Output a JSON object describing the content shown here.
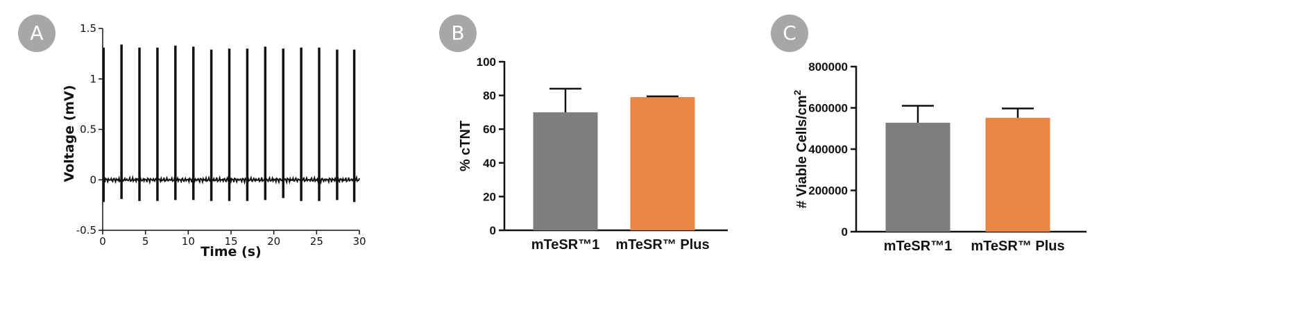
{
  "panels": [
    {
      "letter": "A",
      "chart_data": {
        "type": "line",
        "title": "",
        "xlabel": "Time (s)",
        "ylabel": "Voltage (mV)",
        "xlim": [
          0,
          30
        ],
        "ylim": [
          -0.5,
          1.5
        ],
        "xticks": [
          0,
          5,
          10,
          15,
          20,
          25,
          30
        ],
        "yticks": [
          -0.5,
          0,
          0.5,
          1,
          1.5
        ],
        "ytick_labels": [
          "-0.5",
          "0",
          "0.5",
          "1",
          "1.5"
        ],
        "baseline": 0,
        "spikes": [
          {
            "x": 0.1,
            "max": 1.31,
            "min": -0.22
          },
          {
            "x": 2.2,
            "max": 1.34,
            "min": -0.19
          },
          {
            "x": 4.3,
            "max": 1.31,
            "min": -0.21
          },
          {
            "x": 6.4,
            "max": 1.31,
            "min": -0.21
          },
          {
            "x": 8.5,
            "max": 1.33,
            "min": -0.2
          },
          {
            "x": 10.6,
            "max": 1.32,
            "min": -0.2
          },
          {
            "x": 12.7,
            "max": 1.29,
            "min": -0.21
          },
          {
            "x": 14.8,
            "max": 1.3,
            "min": -0.21
          },
          {
            "x": 16.9,
            "max": 1.3,
            "min": -0.21
          },
          {
            "x": 19.0,
            "max": 1.32,
            "min": -0.2
          },
          {
            "x": 21.1,
            "max": 1.3,
            "min": -0.18
          },
          {
            "x": 23.2,
            "max": 1.31,
            "min": -0.21
          },
          {
            "x": 25.3,
            "max": 1.31,
            "min": -0.21
          },
          {
            "x": 27.4,
            "max": 1.29,
            "min": -0.2
          },
          {
            "x": 29.4,
            "max": 1.29,
            "min": -0.22
          }
        ],
        "color": "#111111"
      }
    },
    {
      "letter": "B",
      "chart_data": {
        "type": "bar",
        "title": "",
        "xlabel": "",
        "ylabel": "% cTNT",
        "categories": [
          "mTeSR™1",
          "mTeSR™ Plus"
        ],
        "values": [
          70,
          79
        ],
        "errors": [
          14,
          0.5
        ],
        "colors": [
          "#7d7e80",
          "#e88744"
        ],
        "ylim": [
          0,
          100
        ],
        "yticks": [
          0,
          20,
          40,
          60,
          80,
          100
        ],
        "ytick_labels": [
          "0",
          "20",
          "40",
          "60",
          "80",
          "100"
        ]
      }
    },
    {
      "letter": "C",
      "chart_data": {
        "type": "bar",
        "title": "",
        "xlabel": "",
        "ylabel": "# Viable Cells/cm",
        "ylabel_superscript": "2",
        "categories": [
          "mTeSR™1",
          "mTeSR™ Plus"
        ],
        "values": [
          528000,
          552000
        ],
        "errors": [
          82000,
          45000
        ],
        "colors": [
          "#7d7e80",
          "#e88744"
        ],
        "ylim": [
          0,
          800000
        ],
        "yticks": [
          0,
          200000,
          400000,
          600000,
          800000
        ],
        "ytick_labels": [
          "0",
          "200000",
          "400000",
          "600000",
          "800000"
        ]
      }
    }
  ]
}
